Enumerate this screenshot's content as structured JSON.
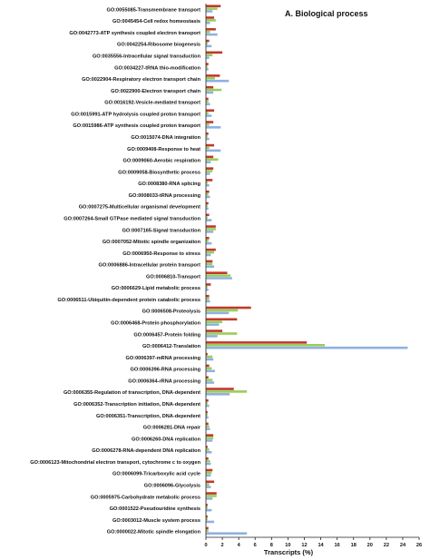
{
  "chart_data": {
    "type": "bar",
    "orientation": "horizontal",
    "title": "A. Biological process",
    "xlabel": "Transcripts (%)",
    "ylabel": "",
    "xlim": [
      0,
      26
    ],
    "xticks": [
      "0",
      "2",
      "4",
      "6",
      "8",
      "10",
      "12",
      "14",
      "16",
      "18",
      "20",
      "22",
      "24",
      "26"
    ],
    "grid": false,
    "legend": "none",
    "colors": [
      "#c0392b",
      "#9acd5a",
      "#8fb1e0"
    ],
    "categories": [
      "GO:0055085-Transmembrane transport",
      "GO:0045454-Cell redox homeostasis",
      "GO:0042773-ATP synthesis coupled electron transport",
      "GO:0042254-Ribosome biogenesis",
      "GO:0035556-Intracellular signal transduction",
      "GO:0034227-tRNA thio-modification",
      "GO:0022904-Respiratory electron transport chain",
      "GO:0022900-Electron transport chain",
      "GO:0016192-Vesicle-mediated transport",
      "GO:0015991-ATP hydrolysis coupled proton transport",
      "GO:0015986-ATP synthesis coupled proton transport",
      "GO:0015074-DNA integration",
      "GO:0009408-Response to heat",
      "GO:0009060-Aerobic respiration",
      "GO:0009058-Biosynthetic process",
      "GO:0008380-RNA splicing",
      "GO:0008033-tRNA processing",
      "GO:0007275-Multicellular organismal development",
      "GO:0007264-Small GTPase mediated signal transduction",
      "GO:0007165-Signal transduction",
      "GO:0007052-Mitotic spindle organization",
      "GO:0006950-Response to stress",
      "GO:0006886-Intracellular protein transport",
      "GO:0006810-Transport",
      "GO:0006629-Lipid metabolic process",
      "GO:0006511-Ubiquitin-dependent protein catabolic process",
      "GO:0006508-Proteolysis",
      "GO:0006468-Protein phosphorylation",
      "GO:0006457-Protein folding",
      "GO:0006412-Translation",
      "GO:0006397-mRNA processing",
      "GO:0006396-RNA processing",
      "GO:0006364-rRNA processing",
      "GO:0006355-Regulation of transcription, DNA-dependent",
      "GO:0006352-Transcription initiation, DNA-dependent",
      "GO:0006351-Transcription, DNA-dependent",
      "GO:0006281-DNA repair",
      "GO:0006260-DNA replication",
      "GO:0006278-RNA-dependent DNA replication",
      "GO:0006123-Mitochondrial electron transport, cytochrome c to oxygen",
      "GO:0006099-Tricarboxylic acid cycle",
      "GO:0006096-Glycolysis",
      "GO:0005975-Carbohydrate metabolic process",
      "GO:0001522-Pseudouridine synthesis",
      "GO:0003012-Muscle system process",
      "GO:0000022-Mitotic spindle elongation"
    ],
    "series": [
      {
        "values": [
          1.8,
          1.0,
          1.2,
          0.4,
          2.0,
          0.3,
          1.7,
          0.9,
          0.3,
          1.0,
          0.9,
          0.3,
          1.0,
          0.9,
          0.9,
          0.8,
          0.4,
          0.3,
          0.4,
          1.2,
          0.4,
          1.2,
          0.8,
          2.6,
          0.6,
          0.4,
          5.5,
          3.8,
          2.0,
          12.3,
          0.2,
          0.4,
          0.3,
          3.4,
          0.3,
          0.2,
          0.3,
          0.9,
          0.2,
          0.3,
          0.8,
          1.0,
          1.3,
          0.2,
          0.2,
          0.3
        ]
      },
      {
        "values": [
          1.4,
          1.2,
          0.5,
          0.2,
          0.8,
          0.2,
          1.1,
          1.9,
          0.3,
          0.3,
          0.4,
          0.2,
          0.4,
          1.5,
          0.8,
          0.2,
          0.3,
          0.2,
          0.2,
          1.2,
          0.3,
          1.0,
          0.8,
          3.0,
          0.2,
          0.4,
          3.9,
          2.0,
          3.8,
          14.5,
          0.8,
          0.7,
          0.8,
          5.0,
          0.2,
          0.2,
          0.4,
          0.9,
          0.4,
          0.5,
          0.7,
          0.4,
          1.3,
          0.2,
          0.2,
          0.3
        ]
      },
      {
        "values": [
          0.8,
          0.5,
          1.4,
          0.7,
          0.4,
          0.3,
          2.8,
          0.9,
          0.5,
          0.7,
          1.8,
          0.4,
          1.8,
          0.6,
          0.5,
          0.4,
          0.5,
          0.3,
          0.7,
          0.9,
          0.7,
          0.6,
          1.0,
          3.2,
          0.3,
          0.5,
          2.8,
          1.6,
          1.4,
          24.6,
          0.9,
          1.1,
          1.0,
          2.9,
          0.4,
          0.3,
          0.5,
          0.8,
          0.7,
          0.6,
          0.6,
          0.6,
          0.8,
          0.7,
          1.0,
          5.0
        ]
      }
    ]
  }
}
